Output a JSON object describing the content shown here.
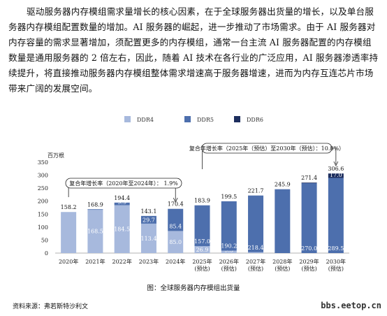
{
  "paragraph": "驱动服务器内存模组需求量增长的核心因素，在于全球服务器出货量的增长，以及单台服务器内存模组配置数量的增加。AI 服务器的崛起，进一步推动了市场需求。由于 AI 服务器对内存容量的需求显著增加，须配置更多的内存模组，通常一台主流 AI 服务器配置的内存模组数量是通用服务器的 2 倍左右，因此，随着 AI 技术在各行业的广泛应用，AI 服务器渗透率持续提升，将直接推动服务器内存模组整体需求增速高于服务器增速，进而为内存互连芯片市场带来广阔的发展空间。",
  "caption": "图：全球服务器内存模组出货量",
  "source": "资料来源：弗若斯特沙利文",
  "watermark": "bbs.eetop.cn",
  "colors": {
    "ddr4": "#a7b9dd",
    "ddr5": "#4d6fad",
    "ddr6": "#1d2e5e"
  },
  "chart_data": {
    "type": "bar",
    "stacked": true,
    "unit_label": "百万根",
    "legend": [
      "DDR4",
      "DDR5",
      "DDR6"
    ],
    "legend_position": "top",
    "categories": [
      [
        "2020年"
      ],
      [
        "2021年"
      ],
      [
        "2022年"
      ],
      [
        "2023年"
      ],
      [
        "2024年"
      ],
      [
        "2025年",
        "(预估)"
      ],
      [
        "2026年",
        "(预估)"
      ],
      [
        "2027年",
        "(预估)"
      ],
      [
        "2028年",
        "(预估)"
      ],
      [
        "2029年",
        "(预估)"
      ],
      [
        "2030年",
        "(预估)"
      ]
    ],
    "series": [
      {
        "name": "DDR4",
        "values": [
          158.2,
          168.5,
          184.5,
          113.4,
          85.0,
          26.9,
          9.3,
          3.3,
          0,
          0,
          0
        ],
        "labels": [
          "",
          "168.5",
          "184.5",
          "113.4",
          "85.0",
          "26.9",
          "9.3",
          "3.3",
          "",
          "",
          ""
        ]
      },
      {
        "name": "DDR5",
        "values": [
          0,
          0.4,
          9.9,
          29.7,
          85.4,
          157.0,
          190.2,
          218.4,
          245.9,
          270.0,
          289.5
        ],
        "labels": [
          "",
          "0.4",
          "9.9",
          "29.7",
          "85.4",
          "157.0",
          "190.2",
          "218.4",
          "",
          "270.0",
          "289.5"
        ]
      },
      {
        "name": "DDR6",
        "values": [
          0,
          0,
          0,
          0,
          0,
          0,
          0,
          0,
          0,
          1.4,
          17.0
        ],
        "labels": [
          "",
          "",
          "",
          "",
          "",
          "",
          "",
          "",
          "",
          "1.4",
          "17.0"
        ]
      }
    ],
    "totals": [
      "158.2",
      "168.9",
      "194.4",
      "143.1",
      "170.4",
      "183.9",
      "199.5",
      "221.7",
      "245.9",
      "271.4",
      "306.6"
    ],
    "ylim": [
      0,
      350
    ],
    "yticks": [
      0,
      50,
      100,
      150,
      200,
      250,
      300,
      350
    ],
    "annotations": [
      {
        "text": "复合年增长率（2020年至2024年）： 1.9%",
        "from_category": 0,
        "to_category": 4
      },
      {
        "text": "复合年增长率（2025年（预估）至2030年（预估）：10.8%）",
        "from_category": 5,
        "to_category": 10
      }
    ]
  }
}
